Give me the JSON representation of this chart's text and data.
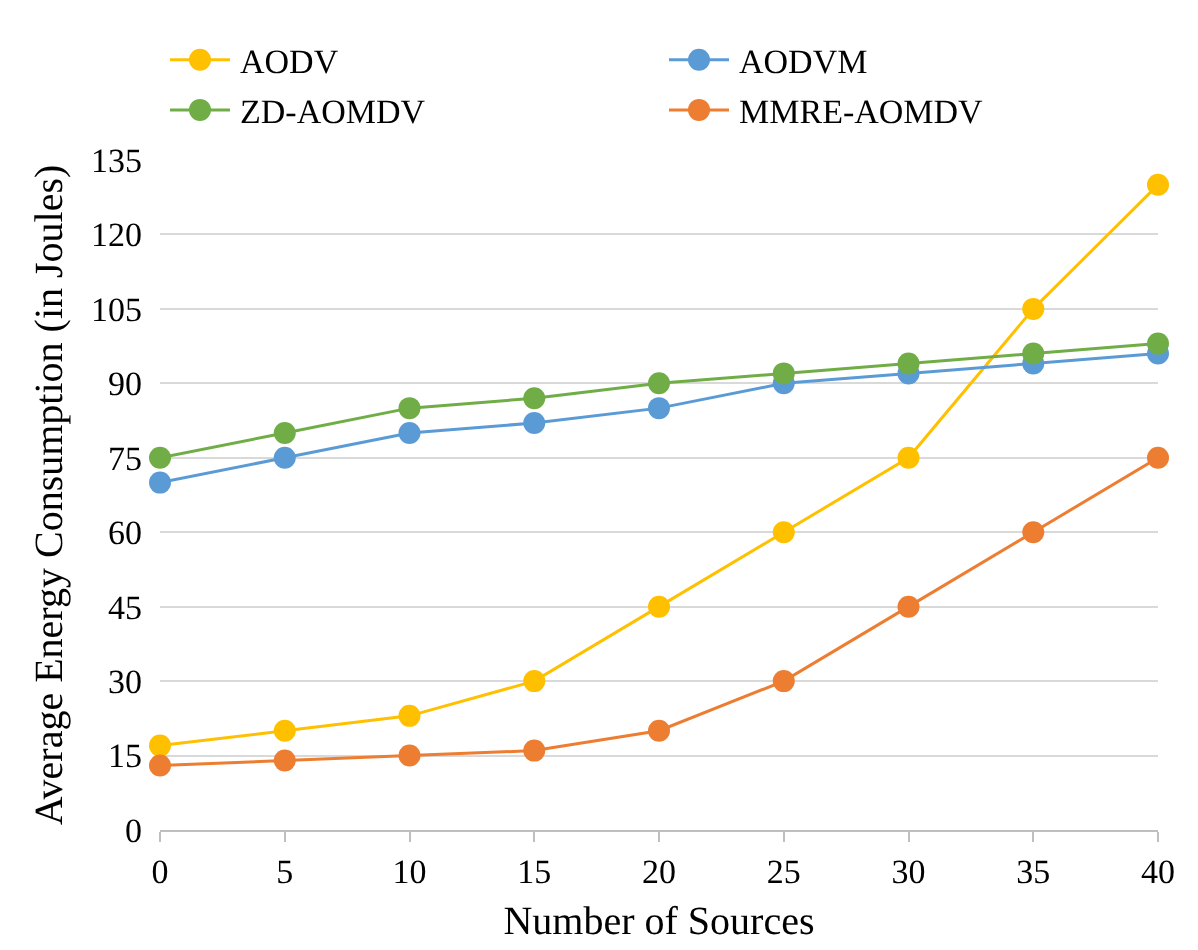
{
  "chart_data": {
    "type": "line",
    "xlabel": "Number of Sources",
    "ylabel": "Average Energy Consumption (in Joules)",
    "x": [
      0,
      5,
      10,
      15,
      20,
      25,
      30,
      35,
      40
    ],
    "series": [
      {
        "name": "AODV",
        "color": "#ffc000",
        "values": [
          17,
          20,
          23,
          30,
          45,
          60,
          75,
          105,
          130
        ]
      },
      {
        "name": "AODVM",
        "color": "#5b9bd5",
        "values": [
          70,
          75,
          80,
          82,
          85,
          90,
          92,
          94,
          96
        ]
      },
      {
        "name": "ZD-AOMDV",
        "color": "#70ad47",
        "values": [
          75,
          80,
          85,
          87,
          90,
          92,
          94,
          96,
          98
        ]
      },
      {
        "name": "MMRE-AOMDV",
        "color": "#ed7d31",
        "values": [
          13,
          14,
          15,
          16,
          20,
          30,
          45,
          60,
          75
        ]
      }
    ],
    "xlim": [
      0,
      40
    ],
    "xticks": [
      0,
      5,
      10,
      15,
      20,
      25,
      30,
      35,
      40
    ],
    "ylim": [
      0,
      135
    ],
    "yticks": [
      0,
      15,
      30,
      45,
      60,
      75,
      90,
      105,
      120,
      135
    ],
    "grid": "y",
    "legend": "top",
    "marker": "circle",
    "line_style": "solid"
  }
}
